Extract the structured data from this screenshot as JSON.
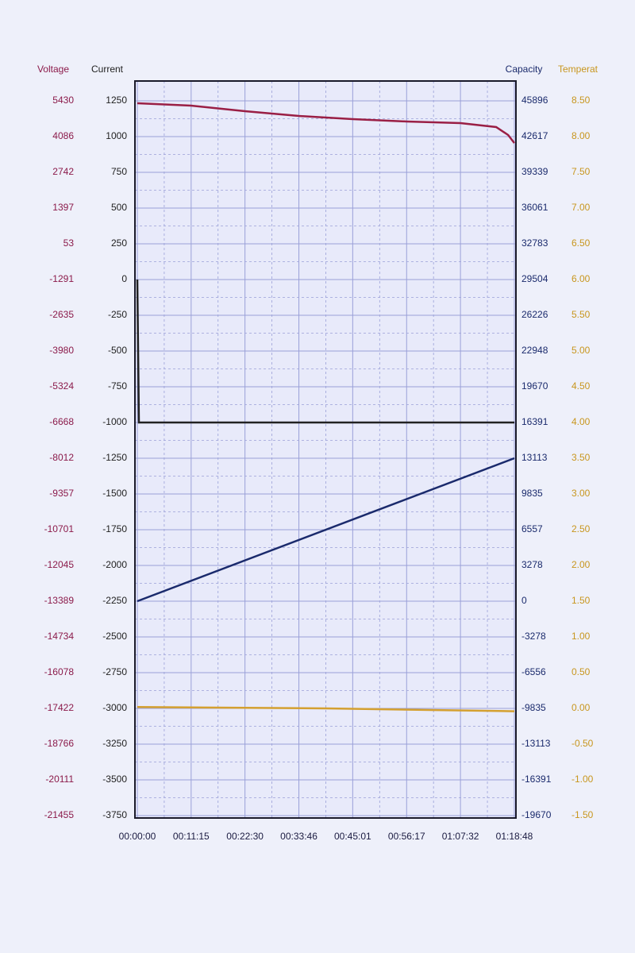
{
  "chart_data": {
    "type": "line",
    "xlim": [
      0,
      4728
    ],
    "xticks": [
      {
        "value": 0,
        "label": "00:00:00"
      },
      {
        "value": 675,
        "label": "00:11:15"
      },
      {
        "value": 1350,
        "label": "00:22:30"
      },
      {
        "value": 2026,
        "label": "00:33:46"
      },
      {
        "value": 2701,
        "label": "00:45:01"
      },
      {
        "value": 3377,
        "label": "00:56:17"
      },
      {
        "value": 4052,
        "label": "01:07:32"
      },
      {
        "value": 4728,
        "label": "01:18:48"
      }
    ],
    "grid": true,
    "yaxes": [
      {
        "label": "Voltage",
        "color": "#8b1a4a",
        "side": "left",
        "ylim": [
          -21455,
          5430
        ],
        "yticks": [
          5430,
          4086,
          2742,
          1397,
          53,
          -1291,
          -2635,
          -3980,
          -5324,
          -6668,
          -8012,
          -9357,
          -10701,
          -12045,
          -13389,
          -14734,
          -16078,
          -17422,
          -18766,
          -20111,
          -21455
        ]
      },
      {
        "label": "Current",
        "color": "#222222",
        "side": "left",
        "ylim": [
          -3750,
          1250
        ],
        "yticks": [
          1250,
          1000,
          750,
          500,
          250,
          0,
          -250,
          -500,
          -750,
          -1000,
          -1250,
          -1500,
          -1750,
          -2000,
          -2250,
          -2500,
          -2750,
          -3000,
          -3250,
          -3500,
          -3750
        ]
      },
      {
        "label": "Capacity",
        "color": "#1a2a6c",
        "side": "right",
        "ylim": [
          -19670,
          45896
        ],
        "yticks": [
          45896,
          42617,
          39339,
          36061,
          32783,
          29504,
          26226,
          22948,
          19670,
          16391,
          13113,
          9835,
          6557,
          3278,
          0,
          -3278,
          -6556,
          -9835,
          -13113,
          -16391,
          -19670
        ]
      },
      {
        "label": "Temperat",
        "color": "#c8961e",
        "side": "right",
        "ylim": [
          -1.5,
          8.5
        ],
        "yticks": [
          {
            "value": 8.5,
            "label": "8.50"
          },
          {
            "value": 8,
            "label": "8.00"
          },
          {
            "value": 7.5,
            "label": "7.50"
          },
          {
            "value": 7,
            "label": "7.00"
          },
          {
            "value": 6.5,
            "label": "6.50"
          },
          {
            "value": 6,
            "label": "6.00"
          },
          {
            "value": 5.5,
            "label": "5.50"
          },
          {
            "value": 5,
            "label": "5.00"
          },
          {
            "value": 4.5,
            "label": "4.50"
          },
          {
            "value": 4,
            "label": "4.00"
          },
          {
            "value": 3.5,
            "label": "3.50"
          },
          {
            "value": 3,
            "label": "3.00"
          },
          {
            "value": 2.5,
            "label": "2.50"
          },
          {
            "value": 2,
            "label": "2.00"
          },
          {
            "value": 1.5,
            "label": "1.50"
          },
          {
            "value": 1,
            "label": "1.00"
          },
          {
            "value": 0.5,
            "label": "0.50"
          },
          {
            "value": 0,
            "label": "0.00"
          },
          {
            "value": -0.5,
            "label": "-0.50"
          },
          {
            "value": -1,
            "label": "-1.00"
          },
          {
            "value": -1.5,
            "label": "-1.50"
          }
        ]
      }
    ],
    "series": [
      {
        "axis": 0,
        "color": "#9a1f45",
        "x": [
          0,
          675,
          1350,
          2026,
          2701,
          3377,
          4052,
          4500,
          4650,
          4728
        ],
        "values": [
          5340,
          5251,
          5042,
          4862,
          4743,
          4653,
          4593,
          4444,
          4145,
          3845
        ]
      },
      {
        "axis": 1,
        "color": "#222222",
        "x": [
          0,
          20,
          4728
        ],
        "values": [
          0,
          -1000,
          -1000
        ]
      },
      {
        "axis": 2,
        "color": "#1a2a6c",
        "x": [
          0,
          4728
        ],
        "values": [
          0,
          13113
        ]
      },
      {
        "axis": 3,
        "color": "#d4a030",
        "x": [
          0,
          2364,
          4728
        ],
        "values": [
          0.02,
          0,
          -0.04
        ]
      }
    ]
  }
}
